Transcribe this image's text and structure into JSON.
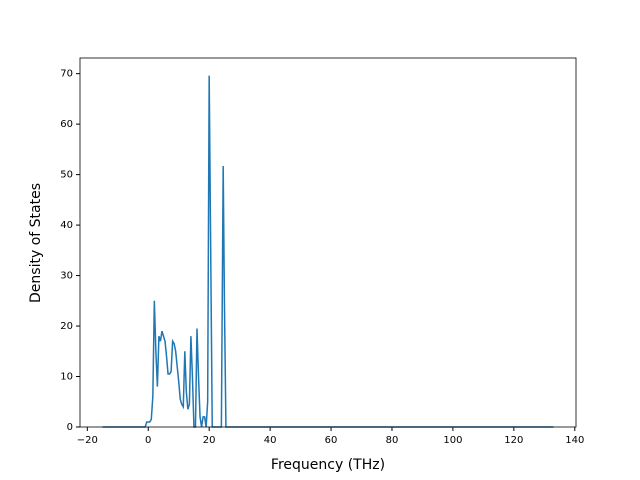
{
  "chart_data": {
    "type": "line",
    "xlabel": "Frequency (THz)",
    "ylabel": "Density of States",
    "x": [
      -15,
      -1,
      -0.5,
      0.5,
      1,
      1.5,
      2,
      2.5,
      3,
      3.5,
      4,
      4.5,
      5,
      5.5,
      6,
      6.5,
      7,
      7.5,
      8,
      8.5,
      9,
      9.5,
      10,
      10.5,
      11,
      11.5,
      12,
      12.5,
      13,
      13.5,
      14,
      14.5,
      15,
      15.5,
      16,
      16.5,
      17,
      17.5,
      18,
      18.5,
      19,
      19.5,
      20,
      20.5,
      21,
      21.5,
      22,
      23,
      24,
      24.6,
      25,
      25.5,
      26,
      133
    ],
    "series": [
      {
        "color": "#1f77b4",
        "values": [
          0,
          0,
          1,
          1,
          1.5,
          6,
          25,
          15,
          8,
          18,
          17,
          19,
          18,
          17,
          14,
          10.5,
          10.5,
          11,
          17,
          16.5,
          15,
          12,
          9,
          5.5,
          4.5,
          4,
          15,
          7,
          3.5,
          4.5,
          18,
          10,
          0,
          0,
          19.5,
          10,
          2,
          0,
          2,
          2,
          0,
          5,
          69.6,
          35,
          0,
          0,
          0,
          0,
          0,
          51.7,
          25,
          0,
          0,
          0
        ]
      }
    ],
    "xlim": [
      -22.4,
      140.4
    ],
    "ylim": [
      0,
      73.1
    ],
    "xticks": [
      {
        "value": -20,
        "label": "−20"
      },
      0,
      20,
      40,
      60,
      80,
      100,
      120,
      140
    ],
    "yticks": [
      0,
      10,
      20,
      30,
      40,
      50,
      60,
      70
    ]
  }
}
